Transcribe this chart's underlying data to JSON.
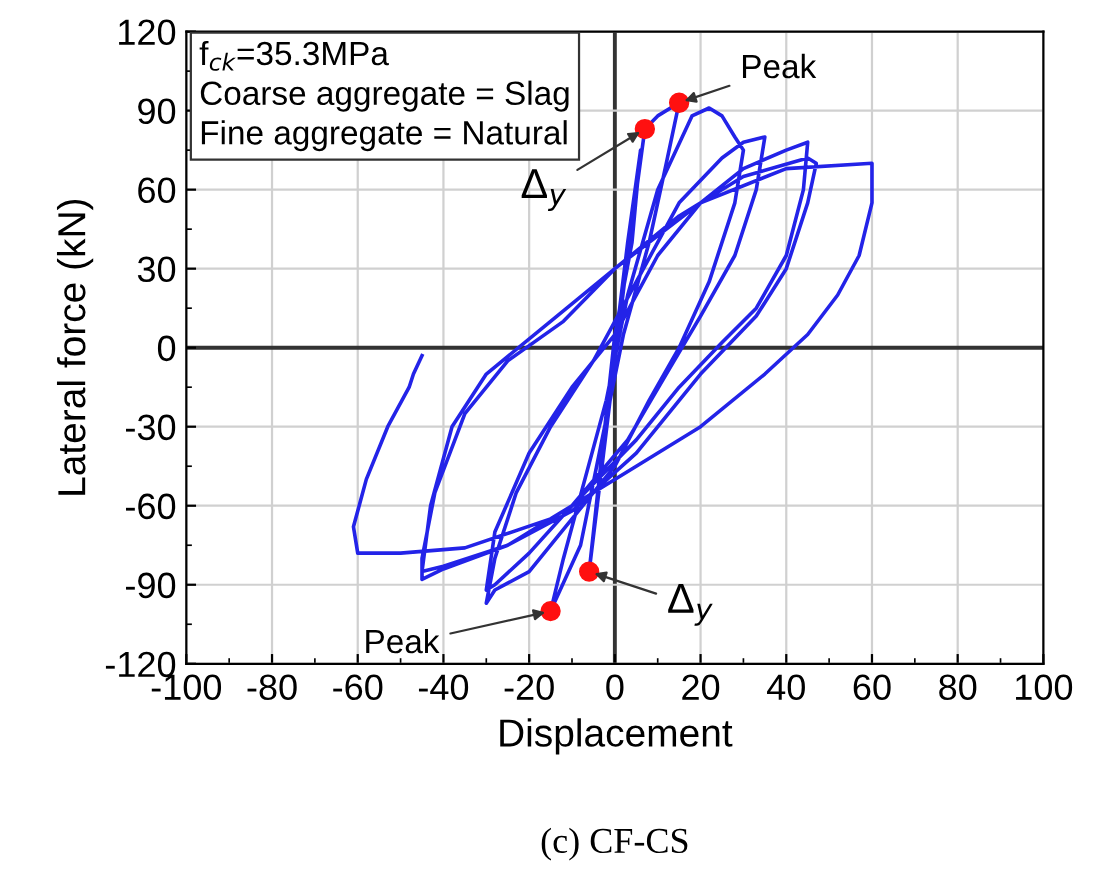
{
  "chart_data": {
    "type": "line",
    "xlabel": "Displacement",
    "ylabel": "Lateral force (kN)",
    "xlim": [
      -100,
      100
    ],
    "xticks": [
      -100,
      -80,
      -60,
      -40,
      -20,
      0,
      20,
      40,
      60,
      80,
      100
    ],
    "ylim": [
      -120,
      120
    ],
    "yticks": [
      -120,
      -90,
      -60,
      -30,
      0,
      30,
      60,
      90,
      120
    ],
    "grid": true,
    "marker": "none",
    "line_style": "solid",
    "series": [
      {
        "type": "line",
        "color": "#2323e8",
        "x": [
          0,
          3,
          6,
          4,
          0,
          -3,
          -6,
          -3,
          0,
          3,
          7,
          10,
          15,
          12,
          8,
          2,
          -3,
          -8,
          -15,
          -12,
          -7,
          -2,
          3,
          10,
          18,
          22,
          25,
          28,
          30,
          28,
          22,
          15,
          8,
          0,
          -10,
          -20,
          -28,
          -30,
          -28,
          -23,
          -15,
          -5,
          5,
          15,
          25,
          30,
          35,
          33,
          28,
          20,
          12,
          3,
          -10,
          -20,
          -28,
          -30,
          -28,
          -20,
          -10,
          0,
          10,
          20,
          30,
          40,
          45,
          44,
          40,
          33,
          25,
          15,
          5,
          -10,
          -25,
          -40,
          -45,
          -45,
          -42,
          -35,
          -25,
          -12,
          0,
          15,
          30,
          45,
          47,
          45,
          40,
          33,
          20,
          5,
          -10,
          -25,
          -40,
          -45,
          -43,
          -38,
          -30,
          -15,
          0,
          20,
          40,
          60,
          60,
          57,
          52,
          45,
          35,
          20,
          5,
          -15,
          -35,
          -50,
          -60,
          -61,
          -58,
          -53,
          -48,
          -47,
          -45
        ],
        "values": [
          0,
          40,
          75,
          40,
          5,
          -40,
          -85,
          -45,
          -5,
          35,
          83,
          88,
          93,
          70,
          40,
          5,
          -35,
          -75,
          -100,
          -80,
          -50,
          -20,
          20,
          60,
          88,
          91,
          88,
          80,
          75,
          55,
          25,
          0,
          -20,
          -45,
          -65,
          -85,
          -92,
          -97,
          -80,
          -55,
          -30,
          -5,
          25,
          55,
          72,
          78,
          80,
          60,
          35,
          12,
          -10,
          -35,
          -60,
          -78,
          -90,
          -92,
          -70,
          -40,
          -15,
          5,
          35,
          55,
          68,
          75,
          78,
          60,
          35,
          15,
          2,
          -15,
          -35,
          -60,
          -75,
          -84,
          -88,
          -80,
          -55,
          -25,
          -5,
          10,
          30,
          50,
          65,
          72,
          70,
          55,
          30,
          12,
          -10,
          -40,
          -62,
          -75,
          -83,
          -85,
          -60,
          -30,
          -10,
          10,
          30,
          55,
          68,
          70,
          55,
          35,
          20,
          5,
          -10,
          -30,
          -45,
          -65,
          -76,
          -78,
          -78,
          -68,
          -50,
          -30,
          -15,
          -10,
          -3
        ]
      },
      {
        "type": "scatter",
        "color": "#ff1010",
        "marker": "circle",
        "x": [
          7,
          15,
          -6,
          -15
        ],
        "values": [
          83,
          93,
          -85,
          -100
        ]
      }
    ],
    "annotations": [
      "f$_{ck}$=35.3MPa",
      "Coarse aggregate = Slag",
      "Fine aggregate = Natural",
      {
        "text": "Peak",
        "x": 15,
        "y": 93
      },
      {
        "text": "Δ$_{y}$",
        "x": 7,
        "y": 83
      },
      {
        "text": "Δ$_{y}$",
        "x": -6,
        "y": -85
      },
      {
        "text": "Peak",
        "x": -15,
        "y": -100
      },
      "(c) CF-CS"
    ]
  }
}
